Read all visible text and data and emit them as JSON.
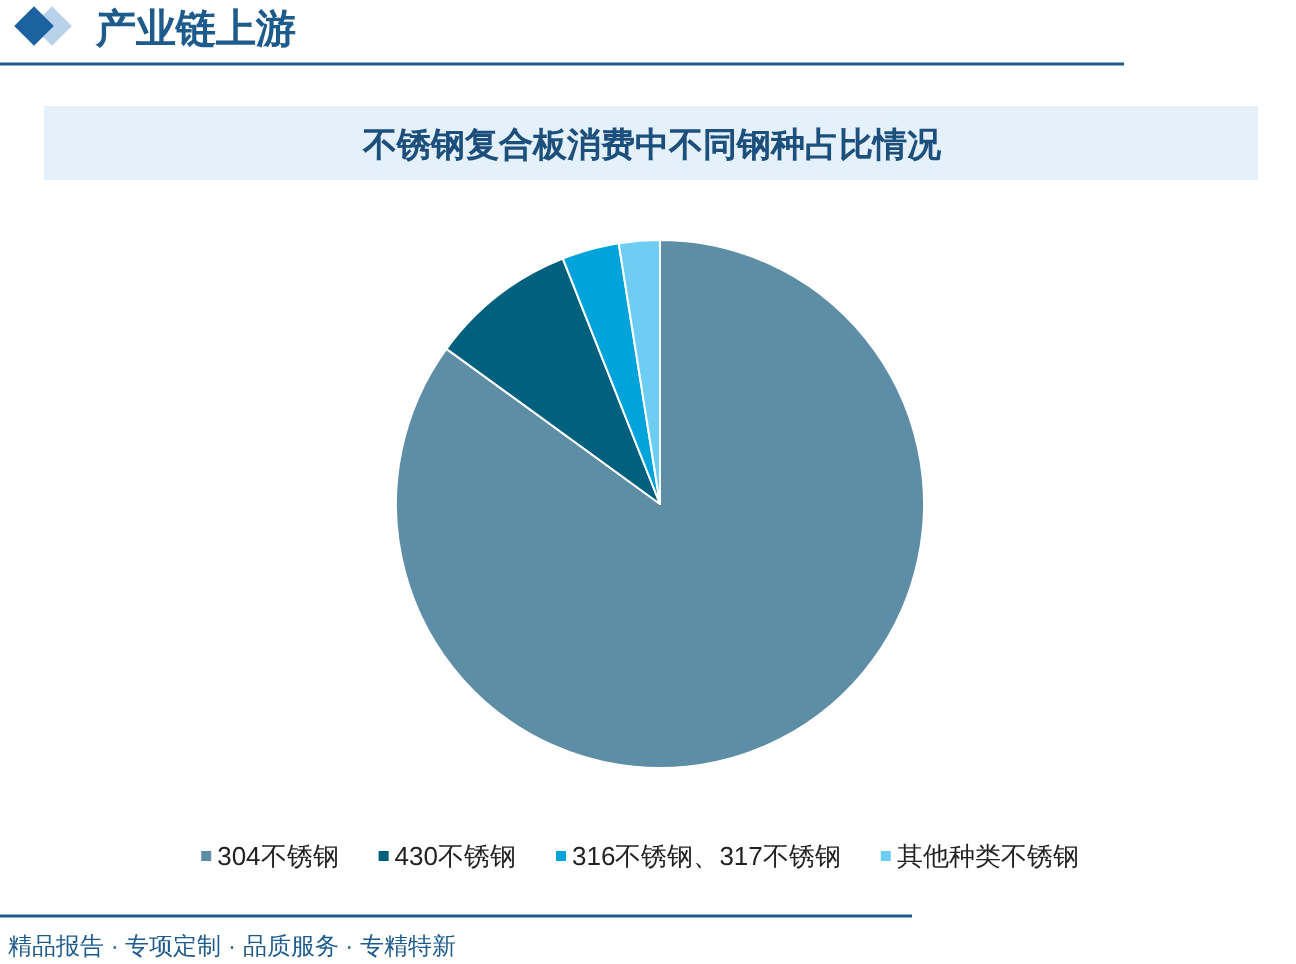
{
  "chart_data": {
    "type": "pie",
    "title": "不锈钢复合板消费中不同钢种占比情况",
    "categories": [
      "304不锈钢",
      "430不锈钢",
      "316不锈钢、317不锈钢",
      "其他种类不锈钢"
    ],
    "values": [
      85,
      9,
      3.5,
      2.5
    ],
    "colors": [
      "#5d8ea5",
      "#00607e",
      "#00a3da",
      "#6dcdf3"
    ],
    "legend": "bottom",
    "annotations": [
      "产业链上游",
      "精品报告 · 专项定制 · 品质服务 · 专精特新"
    ]
  }
}
